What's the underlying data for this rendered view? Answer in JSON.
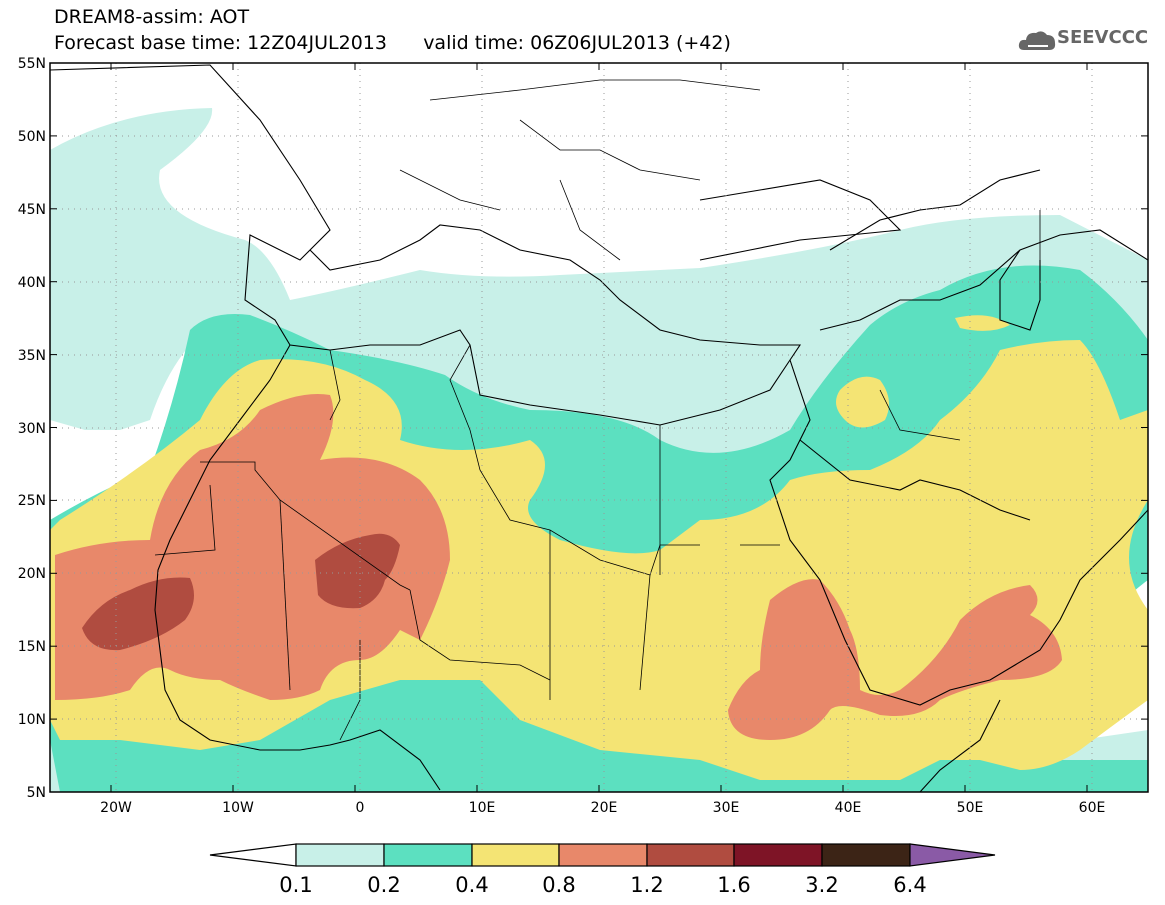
{
  "header": {
    "line1": "DREAM8-assim: AOT",
    "line2": "Forecast base time: 12Z04JUL2013      valid time: 06Z06JUL2013 (+42)"
  },
  "logo": {
    "text": "SEEVCCC",
    "icon": "cloud-icon"
  },
  "map": {
    "lat_labels": [
      "55N",
      "50N",
      "45N",
      "40N",
      "35N",
      "30N",
      "25N",
      "20N",
      "15N",
      "10N",
      "5N"
    ],
    "lon_labels": [
      "20W",
      "10W",
      "0",
      "10E",
      "20E",
      "30E",
      "40E",
      "50E",
      "60E"
    ],
    "lon_range": [
      -25,
      65
    ],
    "lat_range": [
      5,
      55
    ],
    "variable": "AOT"
  },
  "colorbar": {
    "labels": [
      "0.1",
      "0.2",
      "0.4",
      "0.8",
      "1.2",
      "1.6",
      "3.2",
      "6.4"
    ],
    "colors": [
      "#ffffff",
      "#c8f0e8",
      "#5ce0c0",
      "#f4e474",
      "#e8886a",
      "#b04c40",
      "#7e1426",
      "#3c2416",
      "#8a5aa6"
    ]
  }
}
